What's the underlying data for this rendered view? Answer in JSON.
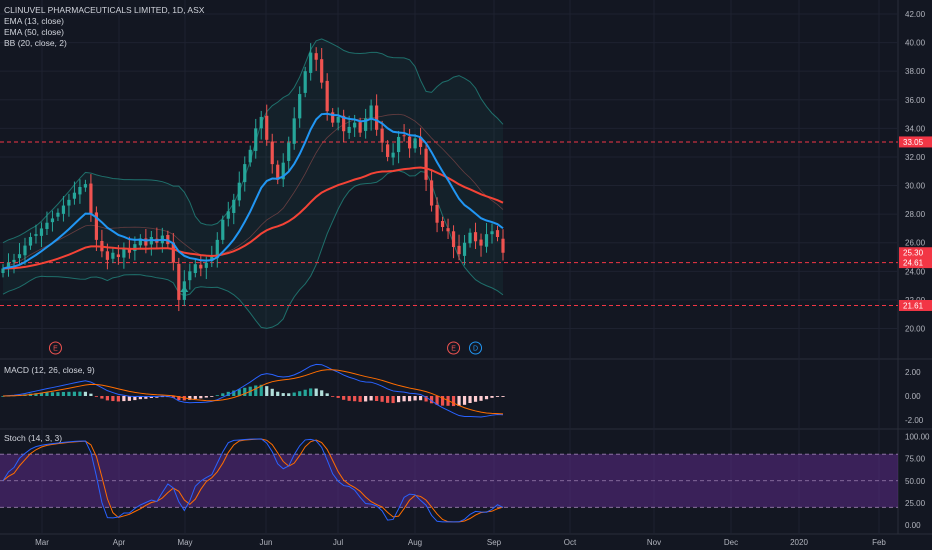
{
  "colors": {
    "background": "#131722",
    "grid": "#1e2230",
    "up": "#26a69a",
    "down": "#ef5350",
    "ema_fast": "#2196f3",
    "ema_slow": "#f44336",
    "bb": "#26a69a",
    "macd_line": "#2962ff",
    "signal_line": "#ff6d00",
    "stoch_k": "#2962ff",
    "stoch_d": "#ff6d00",
    "stoch_band": "#5b2a86"
  },
  "legend": {
    "title": "CLINUVEL PHARMACEUTICALS LIMITED, 1D, ASX",
    "ema13": "EMA (13, close)",
    "ema50": "EMA (50, close)",
    "bb": "BB (20, close, 2)",
    "macd": "MACD (12, 26, close, 9)",
    "stoch": "Stoch (14, 3, 3)"
  },
  "chart_data": [
    {
      "type": "candlestick",
      "title": "CLINUVEL PHARMACEUTICALS LIMITED, 1D, ASX",
      "ylim": [
        19,
        42.5
      ],
      "x_labels": [
        "Mar",
        "Apr",
        "May",
        "Jun",
        "Jul",
        "Aug",
        "Sep",
        "Oct",
        "Nov",
        "Dec",
        "2020",
        "Feb"
      ],
      "y_ticks": [
        "20.00",
        "22.00",
        "24.00",
        "26.00",
        "28.00",
        "30.00",
        "32.00",
        "34.00",
        "36.00",
        "38.00",
        "40.00",
        "42.00"
      ],
      "close_series": [
        24.2,
        24.6,
        24.8,
        25.2,
        25.8,
        26.4,
        26.6,
        27.0,
        27.4,
        27.7,
        28.1,
        28.6,
        29.0,
        29.5,
        29.9,
        30.1,
        28.0,
        26.2,
        25.4,
        24.8,
        25.3,
        25.0,
        25.6,
        25.3,
        25.9,
        26.3,
        25.8,
        26.4,
        26.0,
        26.5,
        25.9,
        24.6,
        22.0,
        23.3,
        24.0,
        24.5,
        24.2,
        24.6,
        25.0,
        26.2,
        27.6,
        28.2,
        29.0,
        30.2,
        31.5,
        32.5,
        34.0,
        34.8,
        33.2,
        31.5,
        30.4,
        31.6,
        33.0,
        34.7,
        36.4,
        38.0,
        39.3,
        38.8,
        37.2,
        35.2,
        34.4,
        34.8,
        33.8,
        34.1,
        34.4,
        33.7,
        34.7,
        35.6,
        33.9,
        33.0,
        32.0,
        32.3,
        33.4,
        33.5,
        32.6,
        33.3,
        32.7,
        30.4,
        28.6,
        27.4,
        27.1,
        26.8,
        25.7,
        25.2,
        26.0,
        26.7,
        26.1,
        25.8,
        26.6,
        26.8,
        26.4,
        25.3
      ],
      "ema13_end": 26.1,
      "ema50_end": 28.8,
      "price_labels": [
        {
          "value": 33.05,
          "text": "33.05",
          "color": "#f23645"
        },
        {
          "value": 25.3,
          "text": "25.30",
          "color": "#f23645"
        },
        {
          "value": 24.61,
          "text": "24.61",
          "color": "#f23645"
        },
        {
          "value": 21.61,
          "text": "21.61",
          "color": "#f23645"
        }
      ],
      "horizontal_lines": [
        33.05,
        24.61,
        21.61
      ],
      "event_markers": [
        {
          "text": "E",
          "index": 5,
          "color": "#ef5350"
        },
        {
          "text": "E",
          "index": 82,
          "color": "#ef5350"
        },
        {
          "text": "D",
          "index": 86,
          "color": "#2196f3"
        }
      ]
    },
    {
      "type": "macd",
      "title": "MACD (12, 26, close, 9)",
      "ylim": [
        -2.6,
        2.6
      ],
      "y_ticks": [
        "2.00",
        "0.00",
        "-2.00"
      ],
      "levels": [
        2,
        0,
        -2
      ]
    },
    {
      "type": "stochastic",
      "title": "Stoch (14, 3, 3)",
      "ylim": [
        -3,
        104
      ],
      "y_ticks": [
        "100.00",
        "75.00",
        "50.00",
        "25.00",
        "0.00"
      ],
      "band": [
        20,
        80
      ]
    }
  ]
}
